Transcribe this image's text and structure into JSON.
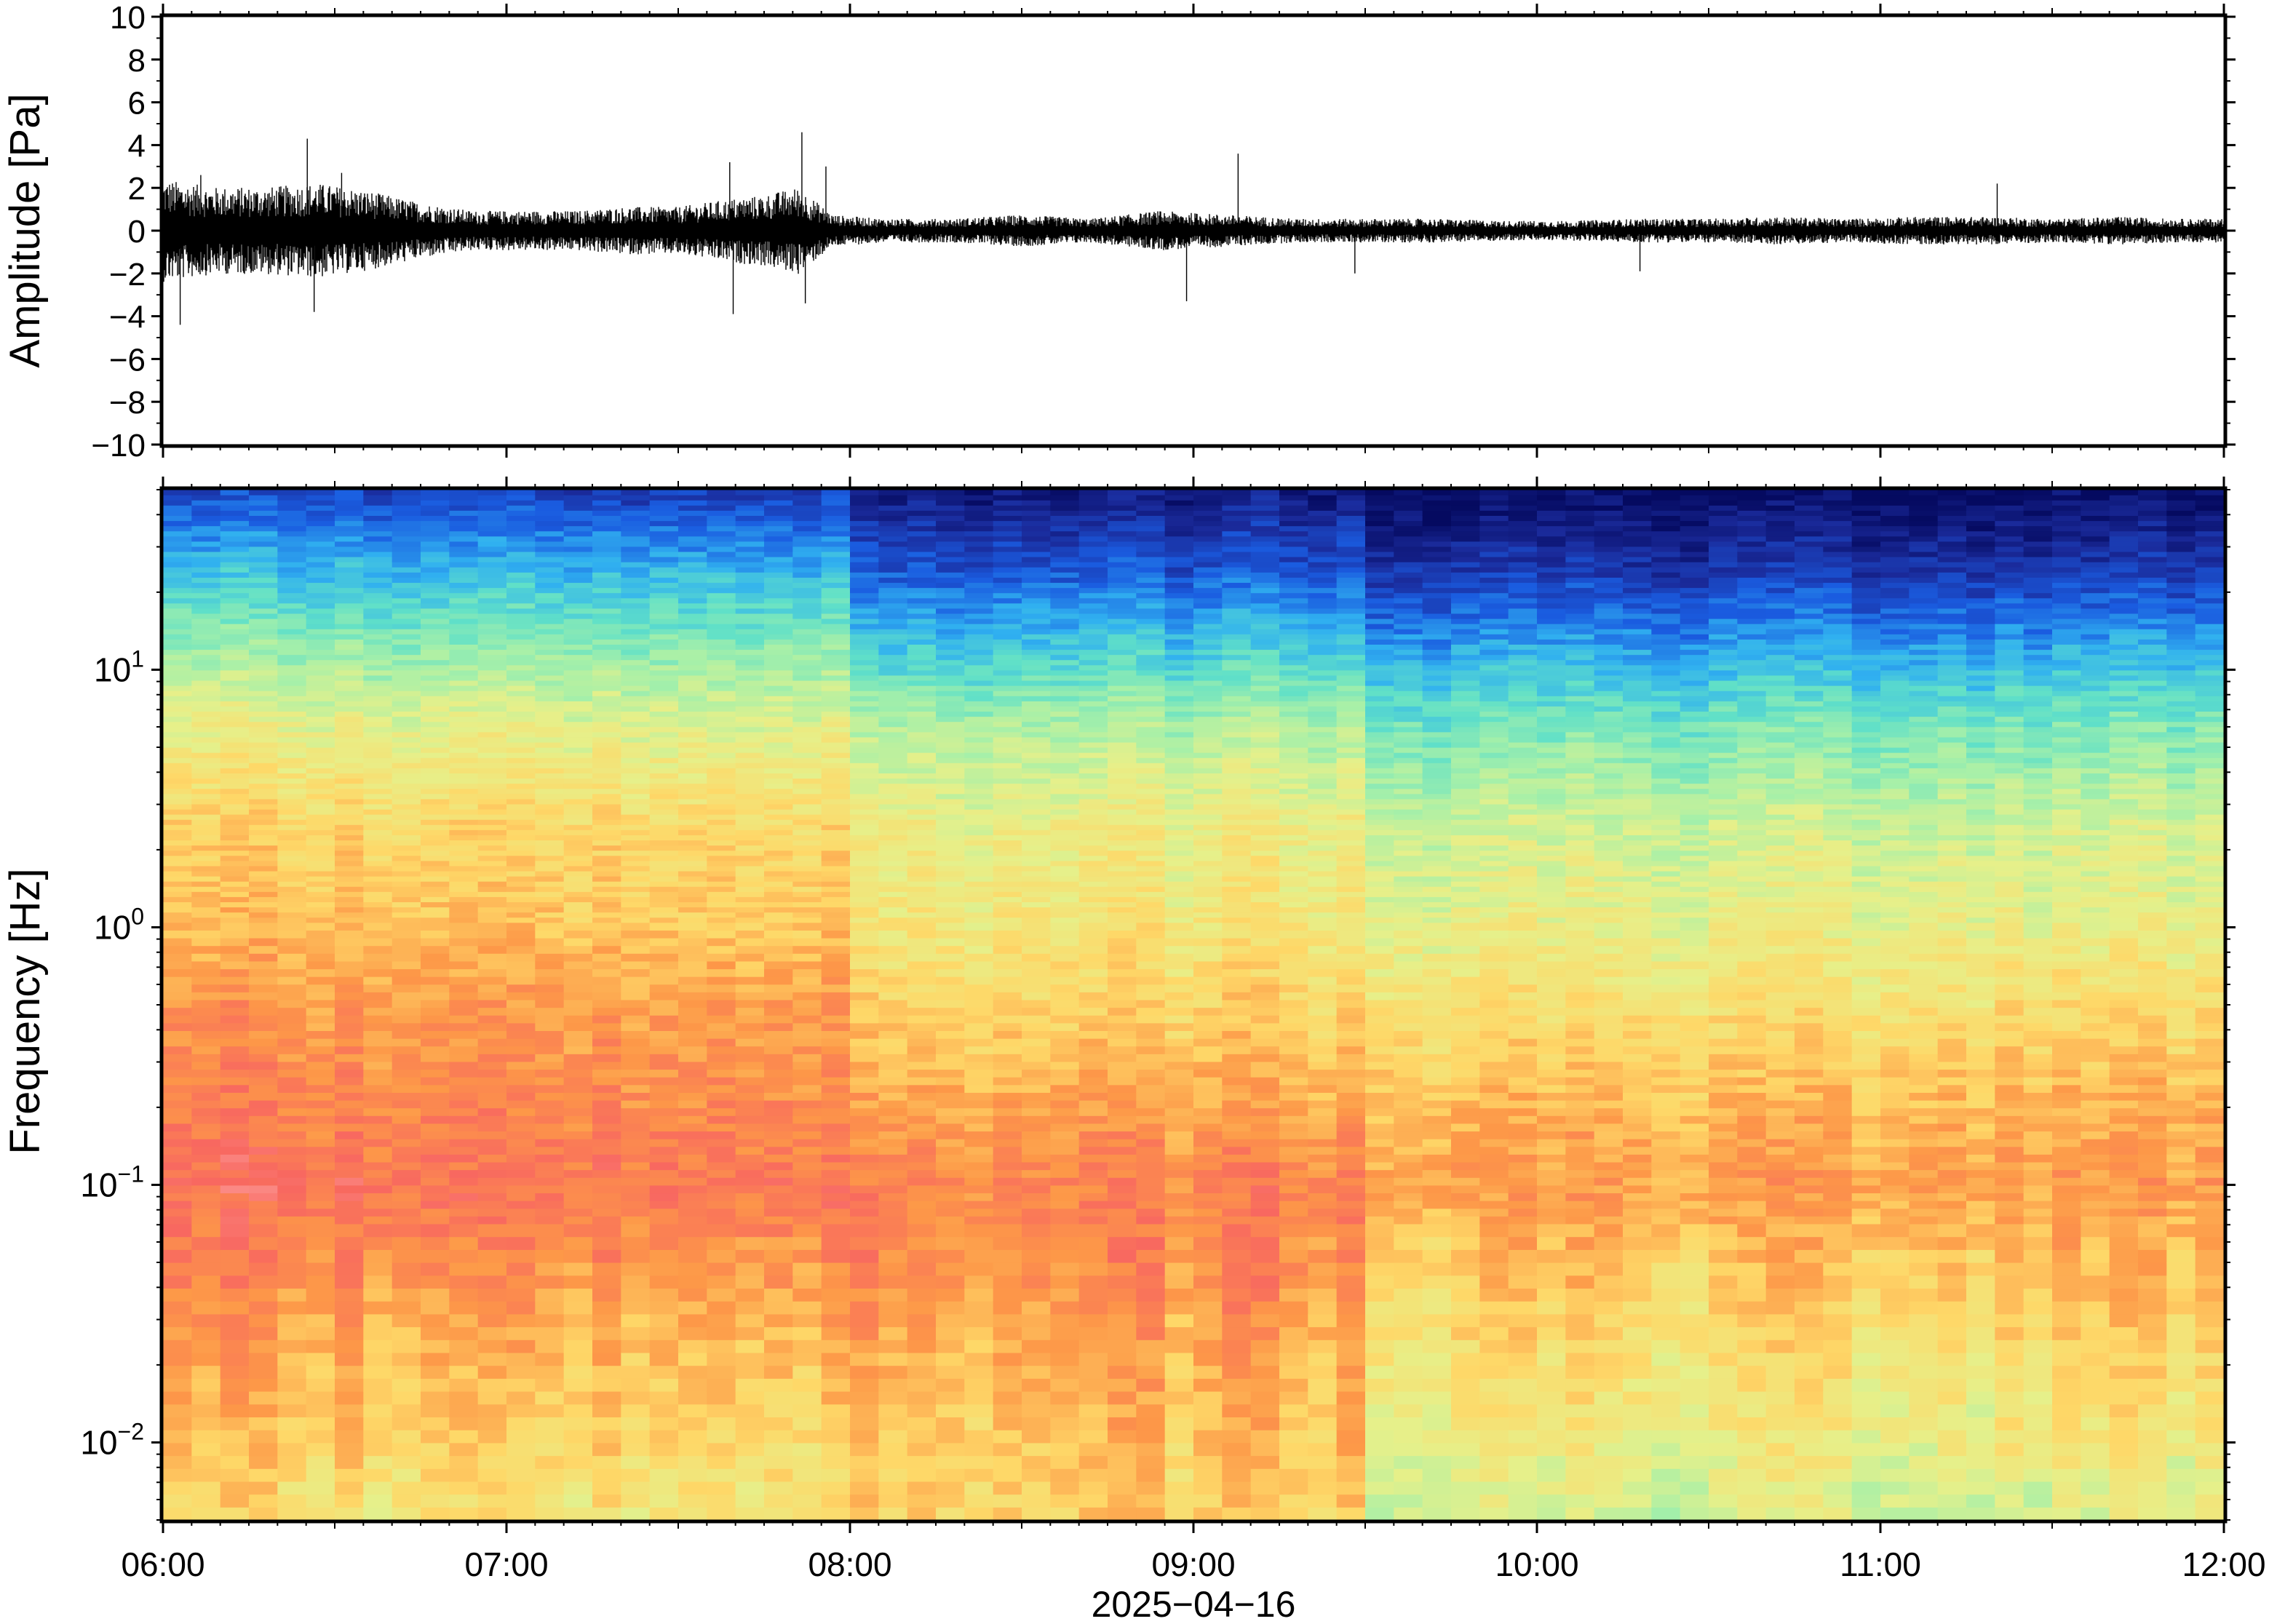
{
  "chart_data": [
    {
      "type": "line",
      "ylabel": "Amplitude [Pa]",
      "ylim": [
        -10,
        10
      ],
      "yticks": [
        10,
        8,
        6,
        4,
        2,
        0,
        -2,
        -4,
        -6,
        -8,
        -10
      ],
      "ytick_labels": [
        "10",
        "8",
        "6",
        "4",
        "2",
        "0",
        "−2",
        "−4",
        "−6",
        "−8",
        "−10"
      ],
      "x_range": [
        "06:00",
        "12:00"
      ],
      "grid": false,
      "series": [
        {
          "color": "#000000",
          "envelope_x_hours": [
            0.0,
            0.15,
            0.3,
            0.45,
            0.6,
            0.75,
            0.9,
            1.05,
            1.2,
            1.35,
            1.5,
            1.65,
            1.75,
            1.85,
            1.95,
            2.1,
            2.3,
            2.5,
            2.7,
            2.9,
            3.1,
            3.3,
            3.5,
            3.7,
            3.9,
            4.1,
            4.3,
            4.5,
            4.7,
            4.9,
            5.1,
            5.3,
            5.5,
            5.7,
            5.85,
            6.0
          ],
          "envelope_abs_pa": [
            1.3,
            1.1,
            1.1,
            1.2,
            1.0,
            0.7,
            0.5,
            0.5,
            0.5,
            0.6,
            0.6,
            0.8,
            0.9,
            1.1,
            0.4,
            0.3,
            0.3,
            0.4,
            0.3,
            0.5,
            0.4,
            0.3,
            0.3,
            0.3,
            0.25,
            0.25,
            0.3,
            0.3,
            0.35,
            0.3,
            0.35,
            0.35,
            0.3,
            0.35,
            0.3,
            0.3
          ],
          "spikes": [
            {
              "t_hours": 0.05,
              "value": -4.4
            },
            {
              "t_hours": 0.11,
              "value": 2.6
            },
            {
              "t_hours": 0.42,
              "value": 4.3
            },
            {
              "t_hours": 0.44,
              "value": -3.8
            },
            {
              "t_hours": 0.52,
              "value": 2.7
            },
            {
              "t_hours": 1.65,
              "value": 3.2
            },
            {
              "t_hours": 1.66,
              "value": -3.9
            },
            {
              "t_hours": 1.86,
              "value": 4.6
            },
            {
              "t_hours": 1.87,
              "value": -3.4
            },
            {
              "t_hours": 1.93,
              "value": 3.0
            },
            {
              "t_hours": 2.98,
              "value": -3.3
            },
            {
              "t_hours": 3.13,
              "value": 3.6
            },
            {
              "t_hours": 3.47,
              "value": -2.0
            },
            {
              "t_hours": 5.34,
              "value": 2.2
            },
            {
              "t_hours": 4.3,
              "value": -1.9
            }
          ]
        }
      ]
    },
    {
      "type": "heatmap",
      "ylabel": "Frequency [Hz]",
      "yscale": "log",
      "ylim": [
        0.005,
        50
      ],
      "yticks": [
        0.01,
        0.1,
        1,
        10
      ],
      "ytick_labels": [
        {
          "base": "10",
          "exp": "−2"
        },
        {
          "base": "10",
          "exp": "−1"
        },
        {
          "base": "10",
          "exp": "0"
        },
        {
          "base": "10",
          "exp": "1"
        }
      ],
      "colormap": "spectral (red = high power, blue = low power)",
      "colormap_stops": [
        "#ffc0c0",
        "#f86860",
        "#fd9848",
        "#fed868",
        "#e6f08a",
        "#a8f0a8",
        "#60e0c8",
        "#30b0f0",
        "#1a5ce0",
        "#1a2a9a",
        "#050a60"
      ],
      "level_bands_log10f": [
        -2.3,
        -1.7,
        -1.3,
        -1.0,
        -0.7,
        -0.3,
        0.0,
        0.4,
        0.8,
        1.1,
        1.4,
        1.7
      ],
      "segments": [
        {
          "from": "06:00",
          "to": "07:57",
          "level_by_band": [
            3.3,
            2.4,
            1.7,
            1.2,
            1.6,
            2.0,
            2.6,
            3.0,
            4.0,
            5.3,
            6.8,
            8.5
          ]
        },
        {
          "from": "07:57",
          "to": "09:27",
          "level_by_band": [
            3.0,
            2.4,
            1.8,
            1.6,
            2.2,
            3.0,
            3.5,
            3.8,
            4.9,
            6.6,
            8.2,
            9.5
          ]
        },
        {
          "from": "09:27",
          "to": "12:00",
          "level_by_band": [
            4.3,
            3.3,
            2.7,
            2.1,
            2.5,
            3.3,
            3.9,
            4.4,
            5.7,
            7.2,
            8.8,
            10.0
          ]
        }
      ]
    }
  ],
  "x_axis": {
    "ticks": [
      "06:00",
      "07:00",
      "08:00",
      "09:00",
      "10:00",
      "11:00",
      "12:00"
    ],
    "date_label": "2025−04−16"
  }
}
